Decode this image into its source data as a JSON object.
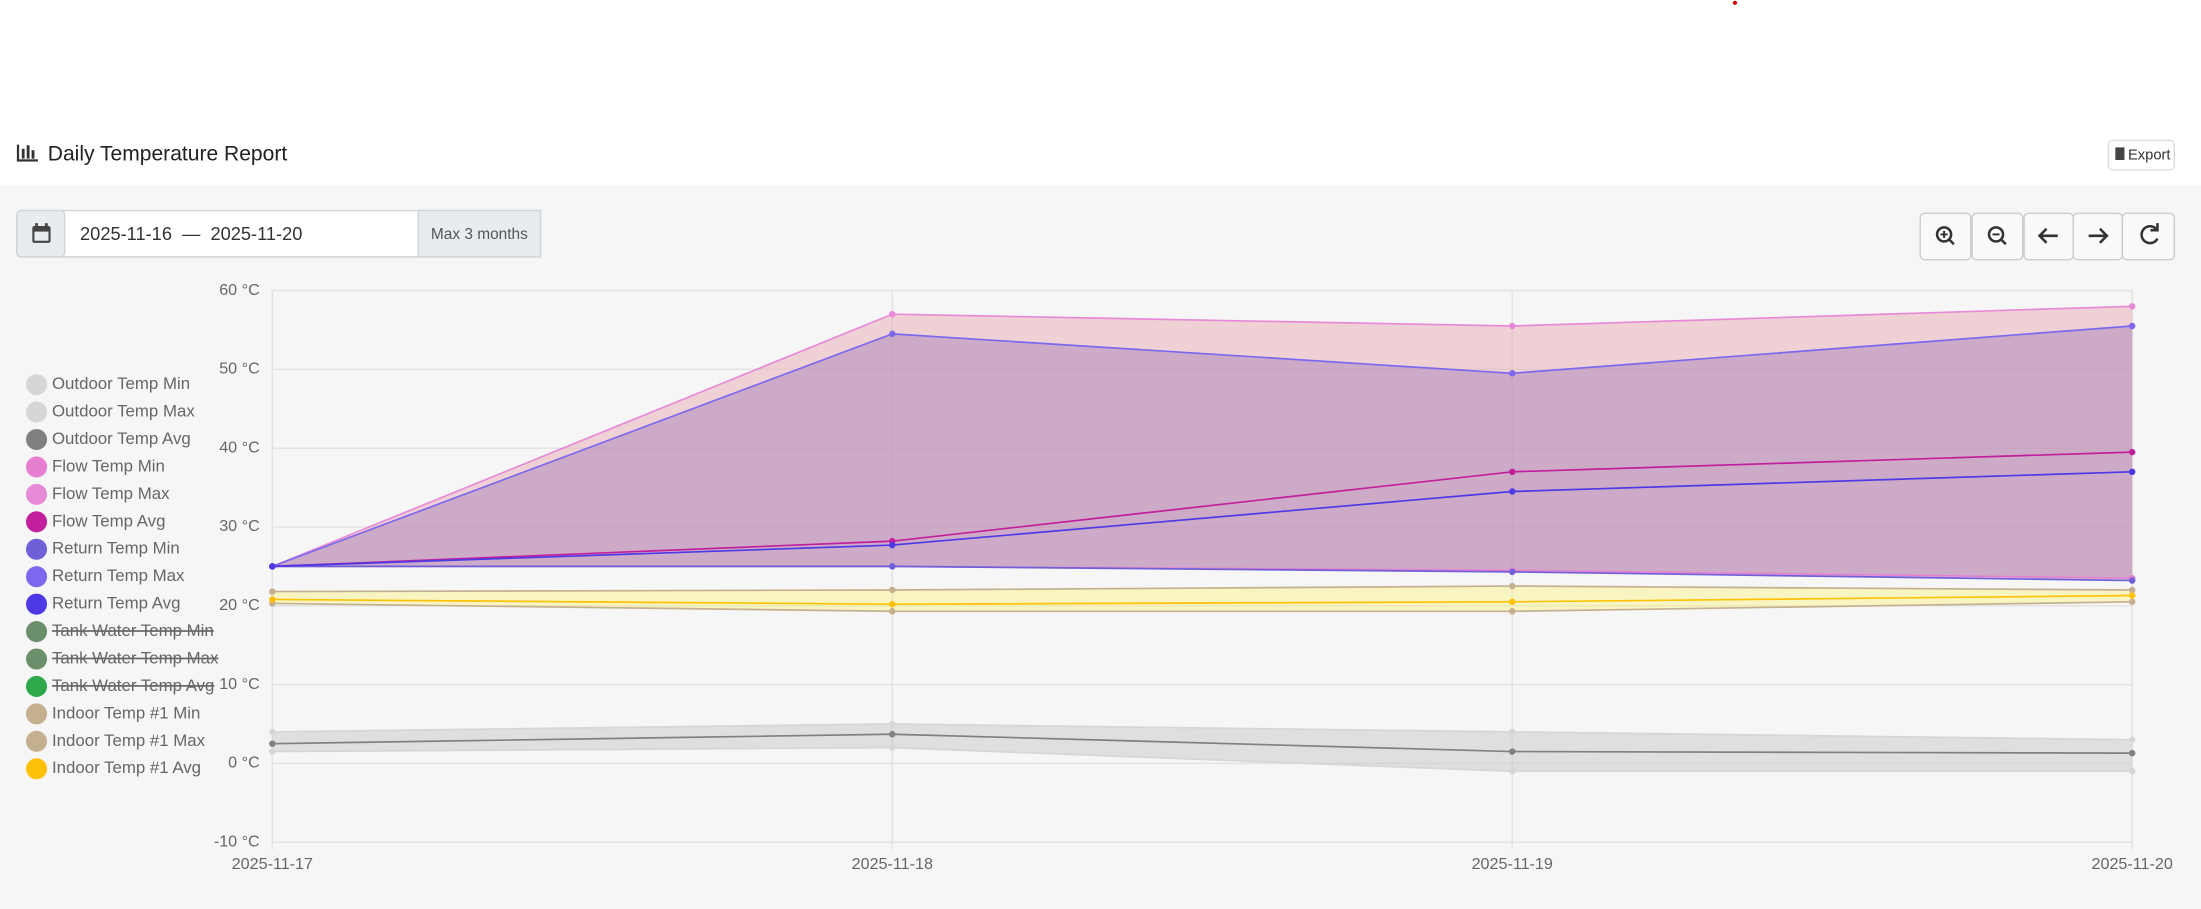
{
  "header": {
    "title": "Daily Temperature Report",
    "export_label": "Export"
  },
  "toolbar": {
    "date_range": "2025-11-16  —  2025-11-20",
    "range_hint": "Max 3 months"
  },
  "chart_data": {
    "type": "line",
    "x": [
      "2025-11-17",
      "2025-11-18",
      "2025-11-19",
      "2025-11-20"
    ],
    "ylim": [
      -10,
      60
    ],
    "yticks": [
      {
        "value": -10,
        "label": "-10 °C"
      },
      {
        "value": 0,
        "label": "0 °C"
      },
      {
        "value": 10,
        "label": "10 °C"
      },
      {
        "value": 20,
        "label": "20 °C"
      },
      {
        "value": 30,
        "label": "30 °C"
      },
      {
        "value": 40,
        "label": "40 °C"
      },
      {
        "value": 50,
        "label": "50 °C"
      },
      {
        "value": 60,
        "label": "60 °C"
      }
    ],
    "grid": true,
    "legend": "left",
    "series": [
      {
        "name": "Outdoor Temp Min",
        "color": "#d6d6d6",
        "values": [
          1.5,
          2,
          -1,
          -1
        ]
      },
      {
        "name": "Outdoor Temp Max",
        "color": "#d6d6d6",
        "fill": "rgba(200,200,200,0.5)",
        "values": [
          4,
          5,
          4,
          3
        ]
      },
      {
        "name": "Outdoor Temp Avg",
        "color": "#808080",
        "values": [
          2.5,
          3.7,
          1.5,
          1.3
        ]
      },
      {
        "name": "Flow Temp Min",
        "color": "#e67fd0",
        "values": [
          25,
          25,
          24.5,
          23.5
        ]
      },
      {
        "name": "Flow Temp Max",
        "color": "#e68ad8",
        "fill": "rgba(232,170,180,0.5)",
        "values": [
          25,
          57,
          55.5,
          58
        ]
      },
      {
        "name": "Flow Temp Avg",
        "color": "#c21f9c",
        "values": [
          25,
          28.2,
          37,
          39.5
        ]
      },
      {
        "name": "Return Temp Min",
        "color": "#7060d8",
        "values": [
          25,
          25,
          24.3,
          23.2
        ]
      },
      {
        "name": "Return Temp Max",
        "color": "#7b68ee",
        "fill": "rgba(165,125,185,0.45)",
        "values": [
          25,
          54.5,
          49.5,
          55.5
        ]
      },
      {
        "name": "Return Temp Avg",
        "color": "#4d3ae6",
        "values": [
          25,
          27.7,
          34.5,
          37
        ]
      },
      {
        "name": "Tank Water Temp Min",
        "color": "#6b8f6b",
        "hidden": true,
        "values": [
          null,
          null,
          null,
          null
        ]
      },
      {
        "name": "Tank Water Temp Max",
        "color": "#6b8f6b",
        "hidden": true,
        "values": [
          null,
          null,
          null,
          null
        ]
      },
      {
        "name": "Tank Water Temp Avg",
        "color": "#2ea84a",
        "hidden": true,
        "values": [
          null,
          null,
          null,
          null
        ]
      },
      {
        "name": "Indoor Temp #1 Min",
        "color": "#c4b08e",
        "values": [
          20.3,
          19.3,
          19.3,
          20.5
        ]
      },
      {
        "name": "Indoor Temp #1 Max",
        "color": "#c4b08e",
        "fill": "rgba(255,245,120,0.4)",
        "values": [
          21.8,
          22,
          22.5,
          22
        ]
      },
      {
        "name": "Indoor Temp #1 Avg",
        "color": "#ffc107",
        "values": [
          20.8,
          20.2,
          20.5,
          21.3
        ]
      }
    ]
  }
}
